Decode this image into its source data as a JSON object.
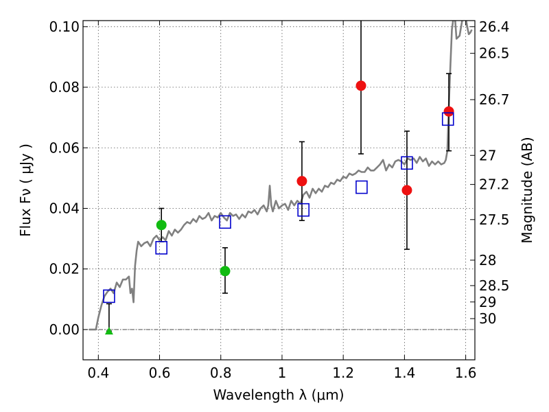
{
  "chart_data": {
    "type": "scatter",
    "xlabel": "Wavelength  λ (μm)",
    "ylabel": "Flux  Fν  ( μJy )",
    "ylabel_right": "Magnitude (AB)",
    "xlim": [
      0.35,
      1.63
    ],
    "ylim": [
      -0.01,
      0.102
    ],
    "grid": true,
    "x_ticks": [
      0.4,
      0.6,
      0.8,
      1.0,
      1.2,
      1.4,
      1.6
    ],
    "x_tick_labels": [
      "0.4",
      "0.6",
      "0.8",
      "1",
      "1.2",
      "1.4",
      "1.6"
    ],
    "y_ticks": [
      0.0,
      0.02,
      0.04,
      0.06,
      0.08,
      0.1
    ],
    "y_tick_labels": [
      "0.00",
      "0.02",
      "0.04",
      "0.06",
      "0.08",
      "0.10"
    ],
    "mag_ticks": [
      {
        "label": "26.4",
        "flux": 0.1
      },
      {
        "label": "26.5",
        "flux": 0.0912
      },
      {
        "label": "26.7",
        "flux": 0.0759
      },
      {
        "label": "27",
        "flux": 0.0575
      },
      {
        "label": "27.2",
        "flux": 0.0479
      },
      {
        "label": "27.5",
        "flux": 0.0363
      },
      {
        "label": "28",
        "flux": 0.0229
      },
      {
        "label": "28.5",
        "flux": 0.0145
      },
      {
        "label": "29",
        "flux": 0.0091
      },
      {
        "label": "30",
        "flux": 0.0036
      }
    ],
    "zero_line": 0.0,
    "colors": {
      "model": "#808080",
      "detection": "#ee1111",
      "green_points": "#11bb11",
      "model_flux": "#0000cc",
      "errorbar": "#000000"
    },
    "series": [
      {
        "kind": "line",
        "points": [
          [
            0.37,
            0.0
          ],
          [
            0.392,
            0.0
          ],
          [
            0.4,
            0.004
          ],
          [
            0.41,
            0.008
          ],
          [
            0.42,
            0.011
          ],
          [
            0.43,
            0.0125
          ],
          [
            0.44,
            0.0135
          ],
          [
            0.45,
            0.012
          ],
          [
            0.46,
            0.0155
          ],
          [
            0.47,
            0.014
          ],
          [
            0.48,
            0.0165
          ],
          [
            0.49,
            0.0165
          ],
          [
            0.5,
            0.0175
          ],
          [
            0.505,
            0.012
          ],
          [
            0.51,
            0.0135
          ],
          [
            0.515,
            0.009
          ],
          [
            0.52,
            0.021
          ],
          [
            0.525,
            0.026
          ],
          [
            0.53,
            0.029
          ],
          [
            0.54,
            0.0275
          ],
          [
            0.55,
            0.0285
          ],
          [
            0.56,
            0.029
          ],
          [
            0.57,
            0.0275
          ],
          [
            0.58,
            0.03
          ],
          [
            0.59,
            0.031
          ],
          [
            0.6,
            0.0295
          ],
          [
            0.61,
            0.0305
          ],
          [
            0.62,
            0.0295
          ],
          [
            0.63,
            0.0325
          ],
          [
            0.64,
            0.031
          ],
          [
            0.65,
            0.033
          ],
          [
            0.66,
            0.032
          ],
          [
            0.67,
            0.033
          ],
          [
            0.68,
            0.0345
          ],
          [
            0.69,
            0.0355
          ],
          [
            0.7,
            0.035
          ],
          [
            0.71,
            0.0365
          ],
          [
            0.72,
            0.0355
          ],
          [
            0.73,
            0.0375
          ],
          [
            0.74,
            0.0365
          ],
          [
            0.75,
            0.037
          ],
          [
            0.76,
            0.0385
          ],
          [
            0.77,
            0.036
          ],
          [
            0.78,
            0.0375
          ],
          [
            0.79,
            0.037
          ],
          [
            0.8,
            0.0385
          ],
          [
            0.81,
            0.037
          ],
          [
            0.82,
            0.036
          ],
          [
            0.83,
            0.0385
          ],
          [
            0.84,
            0.0375
          ],
          [
            0.85,
            0.038
          ],
          [
            0.86,
            0.0365
          ],
          [
            0.87,
            0.038
          ],
          [
            0.88,
            0.037
          ],
          [
            0.89,
            0.039
          ],
          [
            0.9,
            0.0385
          ],
          [
            0.91,
            0.0395
          ],
          [
            0.92,
            0.038
          ],
          [
            0.93,
            0.04
          ],
          [
            0.94,
            0.041
          ],
          [
            0.95,
            0.039
          ],
          [
            0.955,
            0.041
          ],
          [
            0.96,
            0.0475
          ],
          [
            0.965,
            0.041
          ],
          [
            0.97,
            0.039
          ],
          [
            0.98,
            0.0425
          ],
          [
            0.99,
            0.04
          ],
          [
            1.0,
            0.041
          ],
          [
            1.01,
            0.0415
          ],
          [
            1.02,
            0.0395
          ],
          [
            1.03,
            0.0425
          ],
          [
            1.04,
            0.041
          ],
          [
            1.05,
            0.0425
          ],
          [
            1.06,
            0.0415
          ],
          [
            1.07,
            0.0445
          ],
          [
            1.08,
            0.0455
          ],
          [
            1.09,
            0.0435
          ],
          [
            1.1,
            0.0465
          ],
          [
            1.11,
            0.045
          ],
          [
            1.12,
            0.0465
          ],
          [
            1.13,
            0.0455
          ],
          [
            1.14,
            0.0475
          ],
          [
            1.15,
            0.047
          ],
          [
            1.16,
            0.0485
          ],
          [
            1.17,
            0.048
          ],
          [
            1.18,
            0.0495
          ],
          [
            1.19,
            0.049
          ],
          [
            1.2,
            0.0505
          ],
          [
            1.21,
            0.05
          ],
          [
            1.22,
            0.0515
          ],
          [
            1.23,
            0.051
          ],
          [
            1.24,
            0.0515
          ],
          [
            1.25,
            0.0525
          ],
          [
            1.26,
            0.052
          ],
          [
            1.27,
            0.052
          ],
          [
            1.28,
            0.0535
          ],
          [
            1.29,
            0.0525
          ],
          [
            1.3,
            0.0525
          ],
          [
            1.31,
            0.0535
          ],
          [
            1.32,
            0.0545
          ],
          [
            1.33,
            0.056
          ],
          [
            1.34,
            0.0525
          ],
          [
            1.35,
            0.0545
          ],
          [
            1.36,
            0.0535
          ],
          [
            1.37,
            0.0555
          ],
          [
            1.38,
            0.056
          ],
          [
            1.39,
            0.0555
          ],
          [
            1.4,
            0.0545
          ],
          [
            1.41,
            0.0565
          ],
          [
            1.42,
            0.056
          ],
          [
            1.43,
            0.0565
          ],
          [
            1.44,
            0.055
          ],
          [
            1.45,
            0.057
          ],
          [
            1.46,
            0.0555
          ],
          [
            1.47,
            0.0565
          ],
          [
            1.48,
            0.054
          ],
          [
            1.49,
            0.0555
          ],
          [
            1.5,
            0.0545
          ],
          [
            1.51,
            0.0555
          ],
          [
            1.52,
            0.0545
          ],
          [
            1.53,
            0.055
          ],
          [
            1.535,
            0.056
          ],
          [
            1.54,
            0.059
          ],
          [
            1.545,
            0.074
          ],
          [
            1.55,
            0.087
          ],
          [
            1.555,
            0.099
          ],
          [
            1.56,
            0.103
          ],
          [
            1.565,
            0.103
          ],
          [
            1.57,
            0.096
          ],
          [
            1.58,
            0.097
          ],
          [
            1.59,
            0.103
          ],
          [
            1.6,
            0.103
          ],
          [
            1.605,
            0.1
          ],
          [
            1.61,
            0.0975
          ],
          [
            1.615,
            0.098
          ],
          [
            1.62,
            0.099
          ]
        ]
      },
      {
        "kind": "errorbar_circle",
        "color": "red",
        "points": [
          {
            "x": 1.065,
            "y": 0.049,
            "err_lo": 0.036,
            "err_hi": 0.062
          },
          {
            "x": 1.258,
            "y": 0.0805,
            "err_lo": 0.058,
            "err_hi": 0.103
          },
          {
            "x": 1.408,
            "y": 0.046,
            "err_lo": 0.0265,
            "err_hi": 0.0655
          },
          {
            "x": 1.545,
            "y": 0.072,
            "err_lo": 0.059,
            "err_hi": 0.0845
          }
        ]
      },
      {
        "kind": "errorbar_circle",
        "color": "green",
        "points": [
          {
            "x": 0.606,
            "y": 0.0345,
            "err_lo": 0.029,
            "err_hi": 0.04
          },
          {
            "x": 0.814,
            "y": 0.0193,
            "err_lo": 0.012,
            "err_hi": 0.027
          }
        ]
      },
      {
        "kind": "errorbar_triangle",
        "color": "green",
        "points": [
          {
            "x": 0.435,
            "y": -0.0005,
            "err_lo": -0.0005,
            "err_hi": 0.0085
          }
        ]
      },
      {
        "kind": "open_square",
        "color": "blue",
        "points": [
          {
            "x": 0.435,
            "y": 0.011
          },
          {
            "x": 0.606,
            "y": 0.027
          },
          {
            "x": 0.814,
            "y": 0.0355
          },
          {
            "x": 1.07,
            "y": 0.0395
          },
          {
            "x": 1.26,
            "y": 0.047
          },
          {
            "x": 1.408,
            "y": 0.055
          },
          {
            "x": 1.542,
            "y": 0.0695
          }
        ]
      }
    ]
  }
}
